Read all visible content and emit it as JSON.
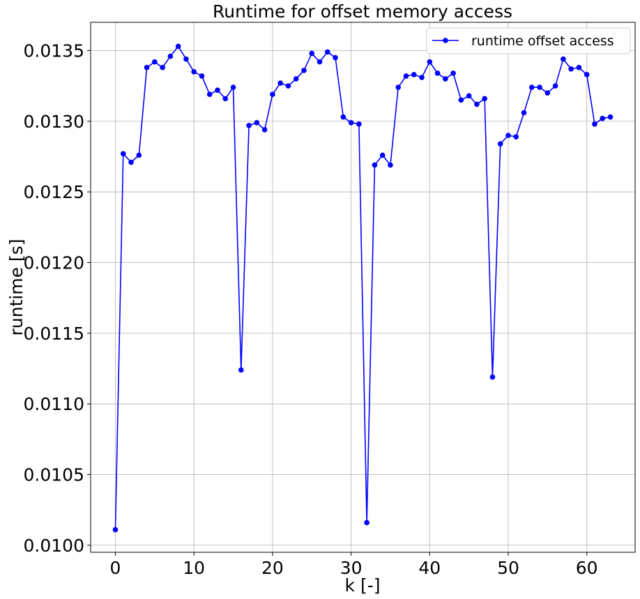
{
  "chart_data": {
    "type": "line",
    "title": "Runtime for offset memory access",
    "xlabel": "k [-]",
    "ylabel": "runtime [s]",
    "xlim": [
      -3.15,
      66.15
    ],
    "ylim": [
      0.00995,
      0.0137
    ],
    "xticks": [
      0,
      10,
      20,
      30,
      40,
      50,
      60
    ],
    "xtick_labels": [
      "0",
      "10",
      "20",
      "30",
      "40",
      "50",
      "60"
    ],
    "yticks": [
      0.01,
      0.0105,
      0.011,
      0.0115,
      0.012,
      0.0125,
      0.013,
      0.0135
    ],
    "ytick_labels": [
      "0.0100",
      "0.0105",
      "0.0110",
      "0.0115",
      "0.0120",
      "0.0125",
      "0.0130",
      "0.0135"
    ],
    "grid": true,
    "legend_position": "top-right",
    "series": [
      {
        "name": "runtime offset access",
        "color": "#0000ff",
        "marker": "circle",
        "x": [
          0,
          1,
          2,
          3,
          4,
          5,
          6,
          7,
          8,
          9,
          10,
          11,
          12,
          13,
          14,
          15,
          16,
          17,
          18,
          19,
          20,
          21,
          22,
          23,
          24,
          25,
          26,
          27,
          28,
          29,
          30,
          31,
          32,
          33,
          34,
          35,
          36,
          37,
          38,
          39,
          40,
          41,
          42,
          43,
          44,
          45,
          46,
          47,
          48,
          49,
          50,
          51,
          52,
          53,
          54,
          55,
          56,
          57,
          58,
          59,
          60,
          61,
          62,
          63
        ],
        "y": [
          0.01011,
          0.01277,
          0.01271,
          0.01276,
          0.01338,
          0.01342,
          0.01338,
          0.01346,
          0.01353,
          0.01344,
          0.01335,
          0.01332,
          0.01319,
          0.01322,
          0.01316,
          0.01324,
          0.01124,
          0.01297,
          0.01299,
          0.01294,
          0.01319,
          0.01327,
          0.01325,
          0.0133,
          0.01336,
          0.01348,
          0.01342,
          0.01349,
          0.01345,
          0.01303,
          0.01299,
          0.01298,
          0.01016,
          0.01269,
          0.01276,
          0.01269,
          0.01324,
          0.01332,
          0.01333,
          0.01331,
          0.01342,
          0.01334,
          0.0133,
          0.01334,
          0.01315,
          0.01318,
          0.01312,
          0.01316,
          0.01119,
          0.01284,
          0.0129,
          0.01289,
          0.01306,
          0.01324,
          0.01324,
          0.0132,
          0.01325,
          0.01344,
          0.01337,
          0.01338,
          0.01333,
          0.01298,
          0.01302,
          0.01303
        ]
      }
    ]
  }
}
